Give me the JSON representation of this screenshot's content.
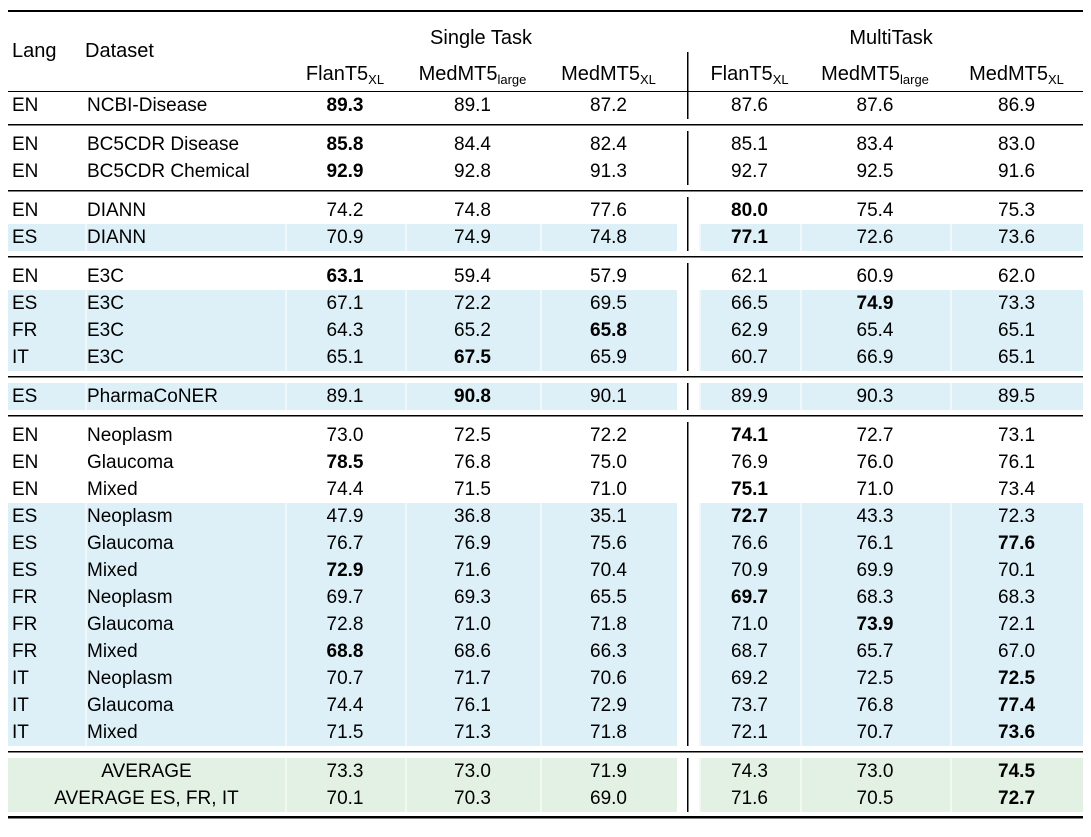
{
  "table": {
    "header": {
      "lang": "Lang",
      "dataset": "Dataset",
      "group_single": "Single Task",
      "group_multi": "MultiTask",
      "models": [
        {
          "base": "FlanT5",
          "sub": "XL"
        },
        {
          "base": "MedMT5",
          "sub": "large"
        },
        {
          "base": "MedMT5",
          "sub": "XL"
        },
        {
          "base": "FlanT5",
          "sub": "XL"
        },
        {
          "base": "MedMT5",
          "sub": "large"
        },
        {
          "base": "MedMT5",
          "sub": "XL"
        }
      ]
    },
    "colors": {
      "row_highlight_blue": "#ddf0f8",
      "row_highlight_green": "#e3f1e4",
      "rule_color": "#000000"
    },
    "groups": [
      {
        "rows": [
          {
            "lang": "EN",
            "dataset": "NCBI-Disease",
            "values": [
              "89.3",
              "89.1",
              "87.2",
              "87.6",
              "87.6",
              "86.9"
            ],
            "bold": 0,
            "bg": "white"
          }
        ]
      },
      {
        "rows": [
          {
            "lang": "EN",
            "dataset": "BC5CDR Disease",
            "values": [
              "85.8",
              "84.4",
              "82.4",
              "85.1",
              "83.4",
              "83.0"
            ],
            "bold": 0,
            "bg": "white"
          },
          {
            "lang": "EN",
            "dataset": "BC5CDR Chemical",
            "values": [
              "92.9",
              "92.8",
              "91.3",
              "92.7",
              "92.5",
              "91.6"
            ],
            "bold": 0,
            "bg": "white"
          }
        ]
      },
      {
        "rows": [
          {
            "lang": "EN",
            "dataset": "DIANN",
            "values": [
              "74.2",
              "74.8",
              "77.6",
              "80.0",
              "75.4",
              "75.3"
            ],
            "bold": 3,
            "bg": "white"
          },
          {
            "lang": "ES",
            "dataset": "DIANN",
            "values": [
              "70.9",
              "74.9",
              "74.8",
              "77.1",
              "72.6",
              "73.6"
            ],
            "bold": 3,
            "bg": "blue"
          }
        ]
      },
      {
        "rows": [
          {
            "lang": "EN",
            "dataset": "E3C",
            "values": [
              "63.1",
              "59.4",
              "57.9",
              "62.1",
              "60.9",
              "62.0"
            ],
            "bold": 0,
            "bg": "white"
          },
          {
            "lang": "ES",
            "dataset": "E3C",
            "values": [
              "67.1",
              "72.2",
              "69.5",
              "66.5",
              "74.9",
              "73.3"
            ],
            "bold": 4,
            "bg": "blue"
          },
          {
            "lang": "FR",
            "dataset": "E3C",
            "values": [
              "64.3",
              "65.2",
              "65.8",
              "62.9",
              "65.4",
              "65.1"
            ],
            "bold": 2,
            "bg": "blue"
          },
          {
            "lang": "IT",
            "dataset": "E3C",
            "values": [
              "65.1",
              "67.5",
              "65.9",
              "60.7",
              "66.9",
              "65.1"
            ],
            "bold": 1,
            "bg": "blue"
          }
        ]
      },
      {
        "rows": [
          {
            "lang": "ES",
            "dataset": "PharmaCoNER",
            "values": [
              "89.1",
              "90.8",
              "90.1",
              "89.9",
              "90.3",
              "89.5"
            ],
            "bold": 1,
            "bg": "blue"
          }
        ]
      },
      {
        "rows": [
          {
            "lang": "EN",
            "dataset": "Neoplasm",
            "values": [
              "73.0",
              "72.5",
              "72.2",
              "74.1",
              "72.7",
              "73.1"
            ],
            "bold": 3,
            "bg": "white"
          },
          {
            "lang": "EN",
            "dataset": "Glaucoma",
            "values": [
              "78.5",
              "76.8",
              "75.0",
              "76.9",
              "76.0",
              "76.1"
            ],
            "bold": 0,
            "bg": "white"
          },
          {
            "lang": "EN",
            "dataset": "Mixed",
            "values": [
              "74.4",
              "71.5",
              "71.0",
              "75.1",
              "71.0",
              "73.4"
            ],
            "bold": 3,
            "bg": "white"
          },
          {
            "lang": "ES",
            "dataset": "Neoplasm",
            "values": [
              "47.9",
              "36.8",
              "35.1",
              "72.7",
              "43.3",
              "72.3"
            ],
            "bold": 3,
            "bg": "blue"
          },
          {
            "lang": "ES",
            "dataset": "Glaucoma",
            "values": [
              "76.7",
              "76.9",
              "75.6",
              "76.6",
              "76.1",
              "77.6"
            ],
            "bold": 5,
            "bg": "blue"
          },
          {
            "lang": "ES",
            "dataset": "Mixed",
            "values": [
              "72.9",
              "71.6",
              "70.4",
              "70.9",
              "69.9",
              "70.1"
            ],
            "bold": 0,
            "bg": "blue"
          },
          {
            "lang": "FR",
            "dataset": "Neoplasm",
            "values": [
              "69.7",
              "69.3",
              "65.5",
              "69.7",
              "68.3",
              "68.3"
            ],
            "bold": 3,
            "bg": "blue"
          },
          {
            "lang": "FR",
            "dataset": "Glaucoma",
            "values": [
              "72.8",
              "71.0",
              "71.8",
              "71.0",
              "73.9",
              "72.1"
            ],
            "bold": 4,
            "bg": "blue"
          },
          {
            "lang": "FR",
            "dataset": "Mixed",
            "values": [
              "68.8",
              "68.6",
              "66.3",
              "68.7",
              "65.7",
              "67.0"
            ],
            "bold": 0,
            "bg": "blue"
          },
          {
            "lang": "IT",
            "dataset": "Neoplasm",
            "values": [
              "70.7",
              "71.7",
              "70.6",
              "69.2",
              "72.5",
              "72.5"
            ],
            "bold": 5,
            "bg": "blue"
          },
          {
            "lang": "IT",
            "dataset": "Glaucoma",
            "values": [
              "74.4",
              "76.1",
              "72.9",
              "73.7",
              "76.8",
              "77.4"
            ],
            "bold": 5,
            "bg": "blue"
          },
          {
            "lang": "IT",
            "dataset": "Mixed",
            "values": [
              "71.5",
              "71.3",
              "71.8",
              "72.1",
              "70.7",
              "73.6"
            ],
            "bold": 5,
            "bg": "blue"
          }
        ]
      },
      {
        "rows": [
          {
            "lang": "",
            "dataset": "AVERAGE",
            "values": [
              "73.3",
              "73.0",
              "71.9",
              "74.3",
              "73.0",
              "74.5"
            ],
            "bold": 5,
            "bg": "green",
            "label_span": true
          },
          {
            "lang": "",
            "dataset": "AVERAGE ES, FR, IT",
            "values": [
              "70.1",
              "70.3",
              "69.0",
              "71.6",
              "70.5",
              "72.7"
            ],
            "bold": 5,
            "bg": "green",
            "label_span": true
          }
        ]
      }
    ]
  }
}
